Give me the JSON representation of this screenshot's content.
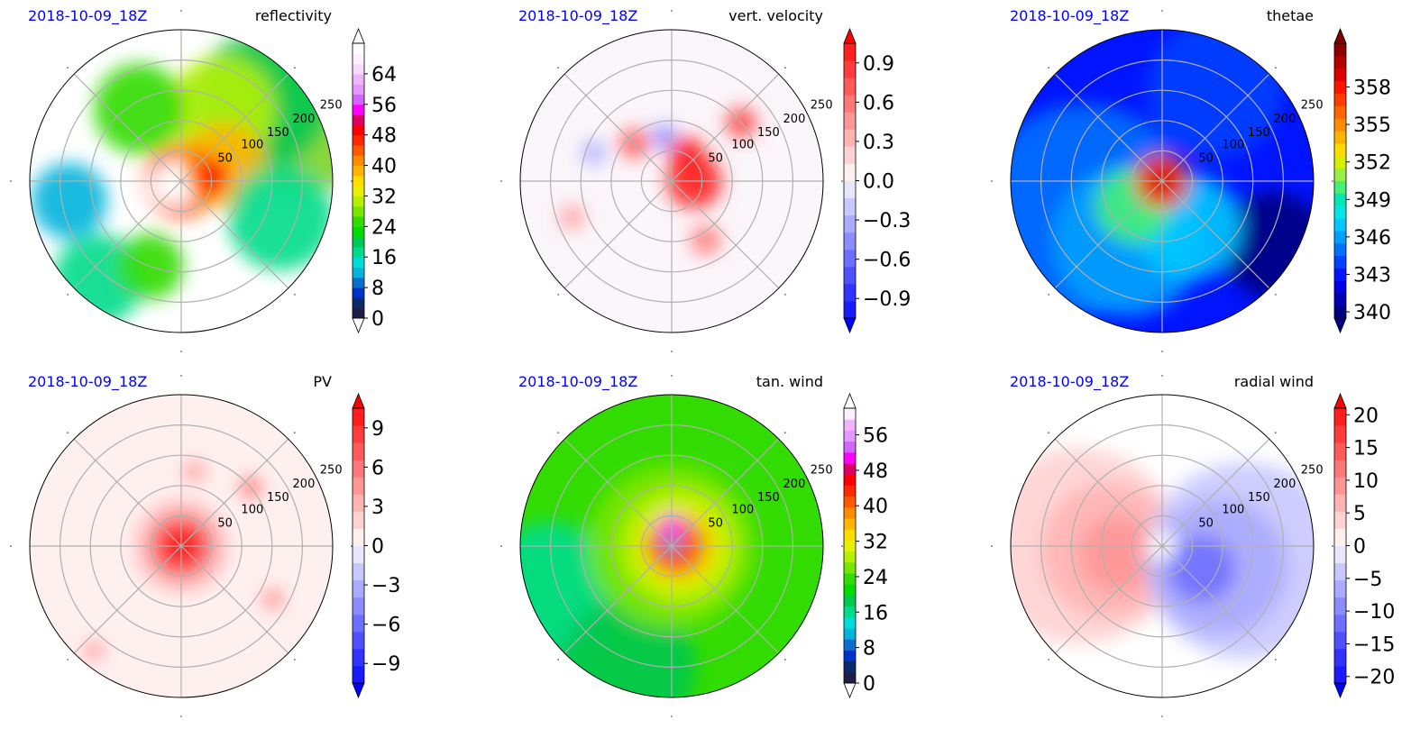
{
  "figure": {
    "valid_time": "2018-10-09_18Z",
    "valid_time_color": "#0000ff"
  },
  "chart_data": [
    {
      "type": "polar-contour",
      "title": "reflectivity",
      "timestamp": "2018-10-09_18Z",
      "ring_labels": [
        "50",
        "100",
        "150",
        "200",
        "250"
      ],
      "colorbar": {
        "ticks": [
          "0",
          "8",
          "16",
          "24",
          "32",
          "40",
          "48",
          "56",
          "64"
        ],
        "range": [
          0,
          72
        ],
        "colors": [
          "#1e1e46",
          "#0a2a6a",
          "#0032c8",
          "#0a6ecc",
          "#00b4dc",
          "#00dcdc",
          "#00dc8c",
          "#00c850",
          "#00dc00",
          "#32dc00",
          "#78e600",
          "#b4f000",
          "#e6f000",
          "#ffdc00",
          "#ffb400",
          "#ff8c00",
          "#ff5a00",
          "#ff2800",
          "#ff0000",
          "#dc0064",
          "#ff00ff",
          "#d264ff",
          "#e696ff",
          "#f0b4ff",
          "#f8dcff",
          "#fff0ff",
          "#ffffff"
        ],
        "extend": "both",
        "tri_low": "#ffffff",
        "tri_high": "#ffffff"
      },
      "field": {
        "background": "#ffffff",
        "features": [
          {
            "kind": "blob",
            "r": 0.95,
            "theta_deg": 30,
            "size": 0.55,
            "color": "#7ed321"
          },
          {
            "kind": "blob",
            "r": 0.75,
            "theta_deg": 45,
            "size": 0.45,
            "color": "#00c850"
          },
          {
            "kind": "blob",
            "r": 0.55,
            "theta_deg": 60,
            "size": 0.35,
            "color": "#b4f000"
          },
          {
            "kind": "blob",
            "r": 0.3,
            "theta_deg": 20,
            "size": 0.28,
            "color": "#ffb400"
          },
          {
            "kind": "ring",
            "r": 0.2,
            "width": 0.08,
            "color": "#ff5a00"
          },
          {
            "kind": "blob",
            "r": 0.2,
            "theta_deg": 10,
            "size": 0.12,
            "color": "#ff0000"
          },
          {
            "kind": "blob",
            "r": 0.7,
            "theta_deg": -20,
            "size": 0.35,
            "color": "#00dc8c"
          },
          {
            "kind": "blob",
            "r": 0.75,
            "theta_deg": 190,
            "size": 0.25,
            "color": "#00b4dc"
          },
          {
            "kind": "blob",
            "r": 0.55,
            "theta_deg": 120,
            "size": 0.3,
            "color": "#32dc00"
          },
          {
            "kind": "blob",
            "r": 0.85,
            "theta_deg": 230,
            "size": 0.3,
            "color": "#00dc8c"
          },
          {
            "kind": "blob",
            "r": 0.6,
            "theta_deg": 250,
            "size": 0.22,
            "color": "#32dc00"
          },
          {
            "kind": "blob",
            "r": 0.1,
            "theta_deg": 200,
            "size": 0.12,
            "color": "#ffffff"
          }
        ]
      }
    },
    {
      "type": "polar-contour",
      "title": "vert. velocity",
      "timestamp": "2018-10-09_18Z",
      "ring_labels": [
        "50",
        "100",
        "150",
        "200",
        "250"
      ],
      "colorbar": {
        "ticks": [
          "−0.9",
          "−0.6",
          "−0.3",
          "0.0",
          "0.3",
          "0.6",
          "0.9"
        ],
        "range": [
          -1.05,
          1.05
        ],
        "colors": [
          "#1a1aff",
          "#3232ff",
          "#5050ff",
          "#6e6eff",
          "#8c8cff",
          "#aaaaff",
          "#c8c8ff",
          "#e6e6ff",
          "#fff0f0",
          "#ffd2d2",
          "#ffb4b4",
          "#ff9696",
          "#ff7878",
          "#ff5a5a",
          "#ff3c3c",
          "#ff1e1e"
        ],
        "extend": "both",
        "tri_low": "#0000ff",
        "tri_high": "#ff0000"
      },
      "field": {
        "background": "#fbf6fb",
        "features": [
          {
            "kind": "blob",
            "r": 0.15,
            "theta_deg": 0,
            "size": 0.18,
            "color": "#ff1e1e"
          },
          {
            "kind": "blob",
            "r": 0.2,
            "theta_deg": 60,
            "size": 0.12,
            "color": "#ff1e1e"
          },
          {
            "kind": "blob",
            "r": 0.35,
            "theta_deg": 135,
            "size": 0.1,
            "color": "#ff5a5a"
          },
          {
            "kind": "blob",
            "r": 0.6,
            "theta_deg": 40,
            "size": 0.1,
            "color": "#ff3c3c"
          },
          {
            "kind": "blob",
            "r": 0.45,
            "theta_deg": -60,
            "size": 0.1,
            "color": "#ff7878"
          },
          {
            "kind": "blob",
            "r": 0.7,
            "theta_deg": 200,
            "size": 0.08,
            "color": "#ff9696"
          },
          {
            "kind": "blob",
            "r": 0.3,
            "theta_deg": 100,
            "size": 0.08,
            "color": "#8c8cff"
          },
          {
            "kind": "blob",
            "r": 0.55,
            "theta_deg": 160,
            "size": 0.08,
            "color": "#aaaaff"
          }
        ]
      }
    },
    {
      "type": "polar-contour",
      "title": "thetae",
      "timestamp": "2018-10-09_18Z",
      "ring_labels": [
        "50",
        "100",
        "150",
        "200",
        "250"
      ],
      "colorbar": {
        "ticks": [
          "340",
          "343",
          "346",
          "349",
          "352",
          "355",
          "358"
        ],
        "range": [
          339.5,
          361.5
        ],
        "colors": [
          "#000080",
          "#0000b0",
          "#0000e6",
          "#0014ff",
          "#0040ff",
          "#0070ff",
          "#00a0ff",
          "#00c8ff",
          "#00e6e6",
          "#00e6b4",
          "#46f078",
          "#96f046",
          "#d2f000",
          "#ffdc00",
          "#ffb400",
          "#ff8c00",
          "#ff6400",
          "#ff3c00",
          "#ff1400",
          "#dc0000",
          "#b40000",
          "#8c0000"
        ],
        "extend": "both",
        "tri_low": "#000080",
        "tri_high": "#800000"
      },
      "field": {
        "background": "#0014ff",
        "features": [
          {
            "kind": "blob",
            "r": 0.55,
            "theta_deg": 200,
            "size": 0.7,
            "color": "#0070ff"
          },
          {
            "kind": "blob",
            "r": 0.45,
            "theta_deg": 240,
            "size": 0.5,
            "color": "#00a0ff"
          },
          {
            "kind": "blob",
            "r": 0.7,
            "theta_deg": 60,
            "size": 0.45,
            "color": "#0040ff"
          },
          {
            "kind": "blob",
            "r": 0.85,
            "theta_deg": -30,
            "size": 0.35,
            "color": "#000080"
          },
          {
            "kind": "blob",
            "r": 0.35,
            "theta_deg": -60,
            "size": 0.35,
            "color": "#00c8ff"
          },
          {
            "kind": "blob",
            "r": 0.25,
            "theta_deg": 220,
            "size": 0.25,
            "color": "#46f078"
          },
          {
            "kind": "blob",
            "r": 0.0,
            "theta_deg": 0,
            "size": 0.18,
            "color": "#ff3c00"
          },
          {
            "kind": "blob",
            "r": 0.0,
            "theta_deg": 0,
            "size": 0.1,
            "color": "#dc0000"
          }
        ]
      }
    },
    {
      "type": "polar-contour",
      "title": "PV",
      "timestamp": "2018-10-09_18Z",
      "ring_labels": [
        "50",
        "100",
        "150",
        "200",
        "250"
      ],
      "colorbar": {
        "ticks": [
          "−9",
          "−6",
          "−3",
          "0",
          "3",
          "6",
          "9"
        ],
        "range": [
          -10.5,
          10.5
        ],
        "colors": [
          "#1a1aff",
          "#3232ff",
          "#5050ff",
          "#6e6eff",
          "#8c8cff",
          "#aaaaff",
          "#c8c8ff",
          "#e6e6ff",
          "#fff0f0",
          "#ffd2d2",
          "#ffb4b4",
          "#ff9696",
          "#ff7878",
          "#ff5a5a",
          "#ff3c3c",
          "#ff1e1e"
        ],
        "extend": "both",
        "tri_low": "#0000ff",
        "tri_high": "#ff0000"
      },
      "field": {
        "background": "#fff0f0",
        "features": [
          {
            "kind": "blob",
            "r": 0.0,
            "theta_deg": 0,
            "size": 0.3,
            "color": "#ffb4b4"
          },
          {
            "kind": "blob",
            "r": 0.0,
            "theta_deg": 0,
            "size": 0.2,
            "color": "#ff5a5a"
          },
          {
            "kind": "blob",
            "r": 0.0,
            "theta_deg": 0,
            "size": 0.14,
            "color": "#ff1e1e"
          },
          {
            "kind": "blob",
            "r": 0.6,
            "theta_deg": 40,
            "size": 0.06,
            "color": "#ff3c3c"
          },
          {
            "kind": "blob",
            "r": 0.7,
            "theta_deg": -30,
            "size": 0.05,
            "color": "#ff3c3c"
          },
          {
            "kind": "blob",
            "r": 0.9,
            "theta_deg": 230,
            "size": 0.05,
            "color": "#ff5a5a"
          },
          {
            "kind": "blob",
            "r": 0.5,
            "theta_deg": 80,
            "size": 0.06,
            "color": "#ff7878"
          }
        ]
      }
    },
    {
      "type": "polar-contour",
      "title": "tan. wind",
      "timestamp": "2018-10-09_18Z",
      "ring_labels": [
        "50",
        "100",
        "150",
        "200",
        "250"
      ],
      "colorbar": {
        "ticks": [
          "0",
          "8",
          "16",
          "24",
          "32",
          "40",
          "48",
          "56"
        ],
        "range": [
          0,
          62
        ],
        "colors": [
          "#1e1e46",
          "#0a2a6a",
          "#0032c8",
          "#0a6ecc",
          "#00b4dc",
          "#00dcdc",
          "#00dc8c",
          "#00c850",
          "#00dc00",
          "#32dc00",
          "#78e600",
          "#b4f000",
          "#e6f000",
          "#ffdc00",
          "#ffb400",
          "#ff8c00",
          "#ff5a00",
          "#ff2800",
          "#ff0000",
          "#dc0064",
          "#ff00ff",
          "#d264ff",
          "#e696ff",
          "#f0b4ff",
          "#fff0ff"
        ],
        "extend": "both",
        "tri_low": "#ffffff",
        "tri_high": "#ffffff"
      },
      "field": {
        "background": "#32dc00",
        "features": [
          {
            "kind": "blob",
            "r": 0.85,
            "theta_deg": 200,
            "size": 0.45,
            "color": "#00dc8c"
          },
          {
            "kind": "blob",
            "r": 0.85,
            "theta_deg": 250,
            "size": 0.45,
            "color": "#00c850"
          },
          {
            "kind": "blob",
            "r": 0.0,
            "theta_deg": 0,
            "size": 0.55,
            "color": "#78e600"
          },
          {
            "kind": "blob",
            "r": 0.05,
            "theta_deg": 0,
            "size": 0.4,
            "color": "#b4f000"
          },
          {
            "kind": "blob",
            "r": 0.05,
            "theta_deg": 0,
            "size": 0.3,
            "color": "#e6f000"
          },
          {
            "kind": "blob",
            "r": 0.05,
            "theta_deg": 0,
            "size": 0.2,
            "color": "#ff8c00"
          },
          {
            "kind": "ring",
            "r": 0.11,
            "width": 0.1,
            "color": "#ff0000"
          },
          {
            "kind": "blob",
            "r": 0.12,
            "theta_deg": 90,
            "size": 0.09,
            "color": "#ff00ff"
          },
          {
            "kind": "blob",
            "r": 0.0,
            "theta_deg": 0,
            "size": 0.06,
            "color": "#00dcdc"
          },
          {
            "kind": "blob",
            "r": 0.0,
            "theta_deg": 0,
            "size": 0.03,
            "color": "#0032c8"
          }
        ]
      }
    },
    {
      "type": "polar-contour",
      "title": "radial wind",
      "timestamp": "2018-10-09_18Z",
      "ring_labels": [
        "50",
        "100",
        "150",
        "200",
        "250"
      ],
      "colorbar": {
        "ticks": [
          "−20",
          "−15",
          "−10",
          "−5",
          "0",
          "5",
          "10",
          "15",
          "20"
        ],
        "range": [
          -21,
          21
        ],
        "colors": [
          "#1a1aff",
          "#3232ff",
          "#5050ff",
          "#6e6eff",
          "#8c8cff",
          "#aaaaff",
          "#c8c8ff",
          "#e6e6ff",
          "#fff0f0",
          "#ffd2d2",
          "#ffb4b4",
          "#ff9696",
          "#ff7878",
          "#ff5a5a",
          "#ff3c3c",
          "#ff1e1e"
        ],
        "extend": "both",
        "tri_low": "#0000ff",
        "tri_high": "#ff0000"
      },
      "field": {
        "background": "#ffffff",
        "features": [
          {
            "kind": "blob",
            "r": 0.55,
            "theta_deg": 180,
            "size": 0.65,
            "color": "#ffd2d2"
          },
          {
            "kind": "blob",
            "r": 0.35,
            "theta_deg": 185,
            "size": 0.45,
            "color": "#ffb4b4"
          },
          {
            "kind": "blob",
            "r": 0.3,
            "theta_deg": 190,
            "size": 0.25,
            "color": "#ff9696"
          },
          {
            "kind": "blob",
            "r": 0.55,
            "theta_deg": -10,
            "size": 0.65,
            "color": "#c8c8ff"
          },
          {
            "kind": "blob",
            "r": 0.4,
            "theta_deg": -20,
            "size": 0.45,
            "color": "#aaaaff"
          },
          {
            "kind": "blob",
            "r": 0.3,
            "theta_deg": -30,
            "size": 0.22,
            "color": "#6e6eff"
          },
          {
            "kind": "blob",
            "r": 0.0,
            "theta_deg": 0,
            "size": 0.1,
            "color": "#ffffff"
          }
        ]
      }
    }
  ]
}
